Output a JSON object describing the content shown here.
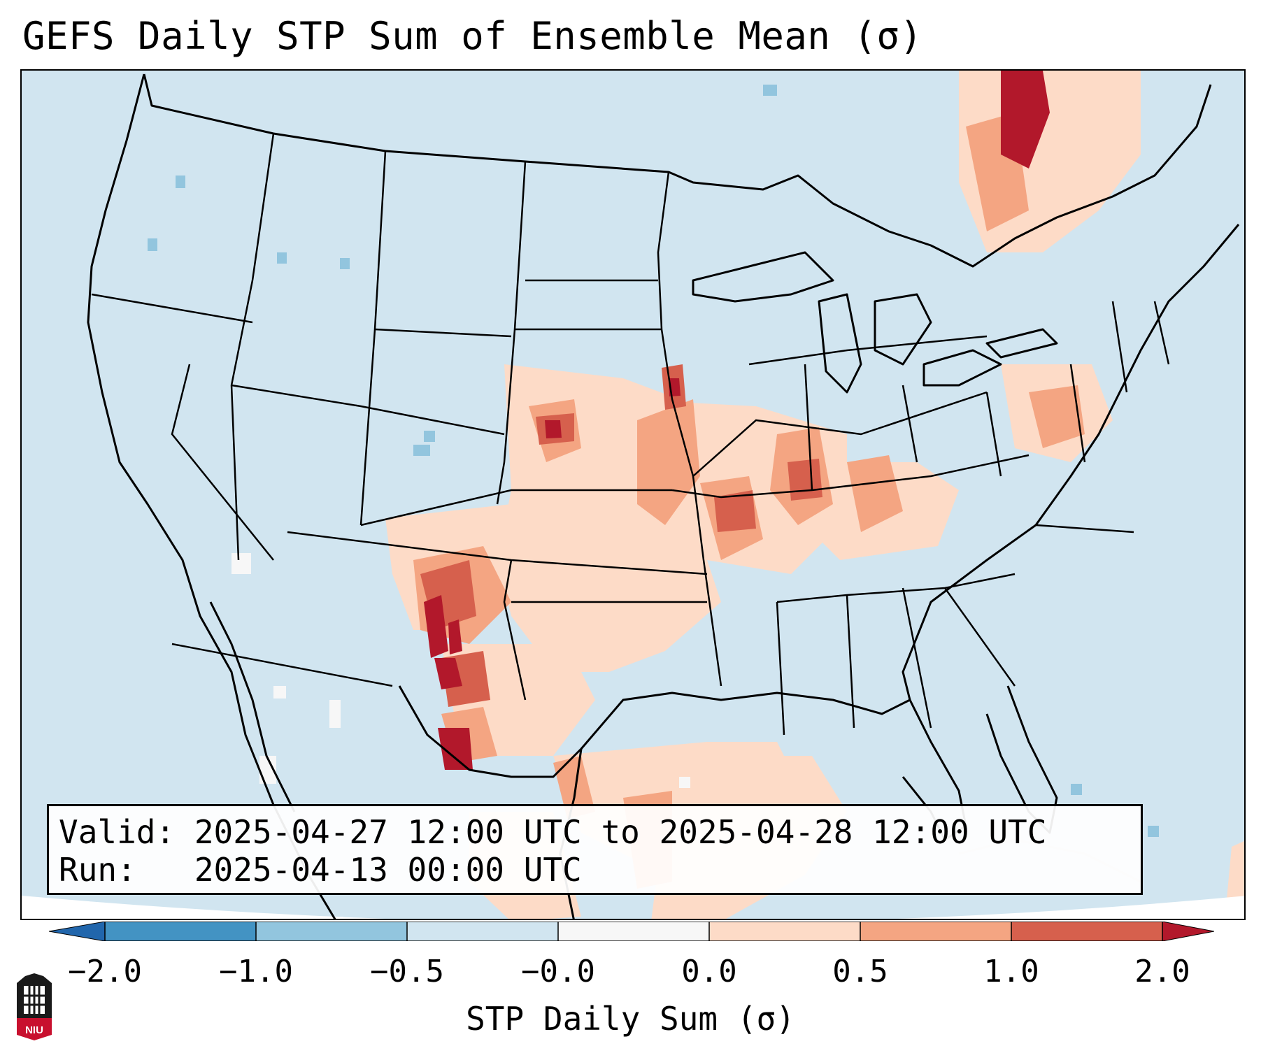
{
  "title": "GEFS Daily STP Sum of Ensemble Mean (σ)",
  "info_box": {
    "valid_line": "Valid: 2025-04-27 12:00 UTC to 2025-04-28 12:00 UTC",
    "run_line": "Run:   2025-04-13 00:00 UTC"
  },
  "colorbar": {
    "label": "STP Daily Sum (σ)",
    "ticks": [
      "−2.0",
      "−1.0",
      "−0.5",
      "−0.0",
      "0.0",
      "0.5",
      "1.0",
      "2.0"
    ],
    "bins": [
      {
        "range": "< -2.0",
        "color": "#2166ac"
      },
      {
        "range": "-2.0 to -1.0",
        "color": "#4393c3"
      },
      {
        "range": "-1.0 to -0.5",
        "color": "#92c5de"
      },
      {
        "range": "-0.5 to -0.0",
        "color": "#d1e5f0"
      },
      {
        "range": "-0.0 to 0.0",
        "color": "#f7f7f7"
      },
      {
        "range": "0.0 to 0.5",
        "color": "#fddbc7"
      },
      {
        "range": "0.5 to 1.0",
        "color": "#f4a582"
      },
      {
        "range": "1.0 to 2.0",
        "color": "#d6604d"
      },
      {
        "range": "> 2.0",
        "color": "#b2182b"
      }
    ]
  },
  "map": {
    "projection": "Lambert conformal, CONUS",
    "background_color": "#d1e5f0",
    "notable_features": [
      "Strongest positive anomalies over eastern New Mexico / west Texas",
      "Positive anomalies along the Plains from Texas to Minnesota",
      "Positive anomalies over Illinois, Indiana, Kentucky, Pennsylvania",
      "Strong positive anomalies over Quebec"
    ]
  },
  "logo": {
    "name": "NIU",
    "text": "NIU"
  }
}
